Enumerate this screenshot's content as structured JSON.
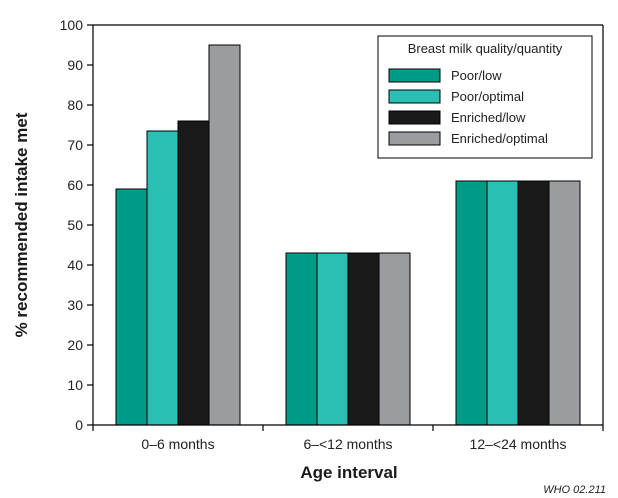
{
  "chart_data": {
    "type": "bar",
    "xlabel": "Age interval",
    "ylabel": "% recommended intake met",
    "ylim": [
      0,
      100
    ],
    "yticks": [
      0,
      10,
      20,
      30,
      40,
      50,
      60,
      70,
      80,
      90,
      100
    ],
    "categories": [
      "0–6 months",
      "6–<12 months",
      "12–<24 months"
    ],
    "legend_title": "Breast milk quality/quantity",
    "legend_position": "top-right",
    "grid": false,
    "series": [
      {
        "name": "Poor/low",
        "color": "#009a87",
        "values": [
          59,
          43,
          61
        ]
      },
      {
        "name": "Poor/optimal",
        "color": "#2abfb3",
        "values": [
          73.5,
          43,
          61
        ]
      },
      {
        "name": "Enriched/low",
        "color": "#1a1a1a",
        "values": [
          76,
          43,
          61
        ]
      },
      {
        "name": "Enriched/optimal",
        "color": "#9b9ca0",
        "values": [
          95,
          43,
          61
        ]
      }
    ]
  },
  "credit": "WHO 02.211"
}
